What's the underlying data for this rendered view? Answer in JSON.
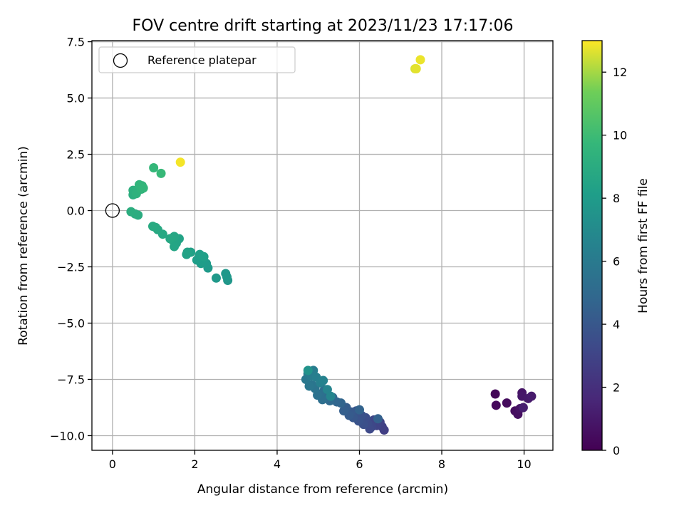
{
  "chart_data": {
    "type": "scatter",
    "title": "FOV centre drift starting at 2023/11/23 17:17:06",
    "xlabel": "Angular distance from reference (arcmin)",
    "ylabel": "Rotation from reference (arcmin)",
    "xlim": [
      -0.5,
      10.7
    ],
    "ylim": [
      -10.65,
      7.55
    ],
    "xticks": [
      0,
      2,
      4,
      6,
      8,
      10
    ],
    "xtick_labels": [
      "0",
      "2",
      "4",
      "6",
      "8",
      "10"
    ],
    "yticks": [
      7.5,
      5.0,
      2.5,
      0.0,
      -2.5,
      -5.0,
      -7.5,
      -10.0
    ],
    "ytick_labels": [
      "7.5",
      "5.0",
      "2.5",
      "0.0",
      "−2.5",
      "−5.0",
      "−7.5",
      "−10.0"
    ],
    "grid": true,
    "colormap": "viridis",
    "colorbar": {
      "label": "Hours from first FF file",
      "range": [
        0,
        13
      ],
      "ticks": [
        0,
        2,
        4,
        6,
        8,
        10,
        12
      ],
      "tick_labels": [
        "0",
        "2",
        "4",
        "6",
        "8",
        "10",
        "12"
      ]
    },
    "legend": {
      "position": "upper-left",
      "entries": [
        {
          "label": "Reference platepar",
          "marker": "hollow-circle"
        }
      ]
    },
    "reference_point": {
      "x": 0,
      "y": 0
    },
    "points": [
      {
        "x": 9.3,
        "y": -8.15,
        "c": 0.2
      },
      {
        "x": 9.32,
        "y": -8.65,
        "c": 0.3
      },
      {
        "x": 9.58,
        "y": -8.55,
        "c": 0.4
      },
      {
        "x": 9.78,
        "y": -8.9,
        "c": 0.5
      },
      {
        "x": 9.85,
        "y": -9.05,
        "c": 0.6
      },
      {
        "x": 9.9,
        "y": -8.8,
        "c": 0.7
      },
      {
        "x": 9.95,
        "y": -8.1,
        "c": 0.8
      },
      {
        "x": 9.95,
        "y": -8.25,
        "c": 0.9
      },
      {
        "x": 10.1,
        "y": -8.35,
        "c": 1.0
      },
      {
        "x": 10.18,
        "y": -8.25,
        "c": 1.1
      },
      {
        "x": 9.98,
        "y": -8.75,
        "c": 1.2
      },
      {
        "x": 6.6,
        "y": -9.75,
        "c": 2.7
      },
      {
        "x": 6.55,
        "y": -9.6,
        "c": 2.8
      },
      {
        "x": 6.5,
        "y": -9.4,
        "c": 2.9
      },
      {
        "x": 6.42,
        "y": -9.55,
        "c": 3.0
      },
      {
        "x": 6.35,
        "y": -9.3,
        "c": 3.1
      },
      {
        "x": 6.3,
        "y": -9.6,
        "c": 3.2
      },
      {
        "x": 6.25,
        "y": -9.7,
        "c": 3.3
      },
      {
        "x": 6.2,
        "y": -9.45,
        "c": 3.4
      },
      {
        "x": 6.15,
        "y": -9.2,
        "c": 3.5
      },
      {
        "x": 6.1,
        "y": -9.5,
        "c": 3.6
      },
      {
        "x": 6.05,
        "y": -9.1,
        "c": 3.7
      },
      {
        "x": 5.98,
        "y": -9.35,
        "c": 3.8
      },
      {
        "x": 5.92,
        "y": -8.9,
        "c": 3.9
      },
      {
        "x": 5.85,
        "y": -9.2,
        "c": 4.0
      },
      {
        "x": 5.8,
        "y": -8.95,
        "c": 4.1
      },
      {
        "x": 5.75,
        "y": -9.1,
        "c": 4.2
      },
      {
        "x": 5.68,
        "y": -8.75,
        "c": 4.3
      },
      {
        "x": 5.62,
        "y": -8.9,
        "c": 4.4
      },
      {
        "x": 6.45,
        "y": -9.25,
        "c": 4.5
      },
      {
        "x": 6.0,
        "y": -8.85,
        "c": 4.6
      },
      {
        "x": 5.55,
        "y": -8.55,
        "c": 4.7
      },
      {
        "x": 5.45,
        "y": -8.5,
        "c": 4.8
      },
      {
        "x": 5.35,
        "y": -8.3,
        "c": 4.9
      },
      {
        "x": 5.28,
        "y": -8.45,
        "c": 5.0
      },
      {
        "x": 5.2,
        "y": -8.1,
        "c": 5.1
      },
      {
        "x": 5.15,
        "y": -7.95,
        "c": 5.2
      },
      {
        "x": 5.1,
        "y": -8.4,
        "c": 5.3
      },
      {
        "x": 5.05,
        "y": -8.15,
        "c": 5.4
      },
      {
        "x": 4.98,
        "y": -8.2,
        "c": 5.5
      },
      {
        "x": 4.92,
        "y": -7.9,
        "c": 5.6
      },
      {
        "x": 4.85,
        "y": -7.75,
        "c": 5.7
      },
      {
        "x": 4.78,
        "y": -7.8,
        "c": 5.8
      },
      {
        "x": 4.7,
        "y": -7.5,
        "c": 5.9
      },
      {
        "x": 4.75,
        "y": -7.25,
        "c": 6.0
      },
      {
        "x": 4.82,
        "y": -7.35,
        "c": 6.1
      },
      {
        "x": 4.88,
        "y": -7.1,
        "c": 6.2
      },
      {
        "x": 4.95,
        "y": -7.4,
        "c": 6.3
      },
      {
        "x": 5.05,
        "y": -7.65,
        "c": 6.4
      },
      {
        "x": 5.12,
        "y": -7.55,
        "c": 6.5
      },
      {
        "x": 5.22,
        "y": -7.95,
        "c": 6.6
      },
      {
        "x": 5.3,
        "y": -8.25,
        "c": 6.7
      },
      {
        "x": 4.75,
        "y": -7.1,
        "c": 7.5
      },
      {
        "x": 2.8,
        "y": -3.1,
        "c": 7.7
      },
      {
        "x": 2.78,
        "y": -2.95,
        "c": 7.75
      },
      {
        "x": 2.75,
        "y": -2.8,
        "c": 7.8
      },
      {
        "x": 2.52,
        "y": -3.0,
        "c": 7.85
      },
      {
        "x": 2.32,
        "y": -2.55,
        "c": 7.9
      },
      {
        "x": 2.28,
        "y": -2.35,
        "c": 7.95
      },
      {
        "x": 2.2,
        "y": -2.2,
        "c": 8.0
      },
      {
        "x": 2.15,
        "y": -2.35,
        "c": 8.05
      },
      {
        "x": 2.1,
        "y": -2.1,
        "c": 8.1
      },
      {
        "x": 2.05,
        "y": -2.2,
        "c": 8.15
      },
      {
        "x": 2.12,
        "y": -1.95,
        "c": 8.2
      },
      {
        "x": 2.22,
        "y": -2.05,
        "c": 8.25
      },
      {
        "x": 1.9,
        "y": -1.85,
        "c": 8.3
      },
      {
        "x": 1.8,
        "y": -1.95,
        "c": 8.35
      },
      {
        "x": 1.82,
        "y": -1.85,
        "c": 8.4
      },
      {
        "x": 1.62,
        "y": -1.25,
        "c": 8.45
      },
      {
        "x": 1.55,
        "y": -1.45,
        "c": 8.5
      },
      {
        "x": 1.5,
        "y": -1.6,
        "c": 8.55
      },
      {
        "x": 1.45,
        "y": -1.3,
        "c": 8.6
      },
      {
        "x": 1.5,
        "y": -1.15,
        "c": 8.65
      },
      {
        "x": 1.4,
        "y": -1.25,
        "c": 8.7
      },
      {
        "x": 1.22,
        "y": -1.05,
        "c": 8.75
      },
      {
        "x": 1.1,
        "y": -0.85,
        "c": 8.8
      },
      {
        "x": 1.05,
        "y": -0.75,
        "c": 8.85
      },
      {
        "x": 0.98,
        "y": -0.7,
        "c": 8.9
      },
      {
        "x": 0.62,
        "y": -0.2,
        "c": 9.0
      },
      {
        "x": 0.55,
        "y": -0.15,
        "c": 9.05
      },
      {
        "x": 0.45,
        "y": -0.05,
        "c": 9.1
      },
      {
        "x": 0.5,
        "y": 0.7,
        "c": 9.15
      },
      {
        "x": 0.55,
        "y": 0.8,
        "c": 9.2
      },
      {
        "x": 0.5,
        "y": 0.9,
        "c": 9.25
      },
      {
        "x": 0.62,
        "y": 0.95,
        "c": 9.3
      },
      {
        "x": 0.58,
        "y": 0.75,
        "c": 9.35
      },
      {
        "x": 0.68,
        "y": 1.05,
        "c": 9.4
      },
      {
        "x": 0.72,
        "y": 1.1,
        "c": 9.45
      },
      {
        "x": 0.7,
        "y": 0.95,
        "c": 9.5
      },
      {
        "x": 0.65,
        "y": 1.15,
        "c": 9.55
      },
      {
        "x": 0.75,
        "y": 1.0,
        "c": 9.6
      },
      {
        "x": 1.0,
        "y": 1.9,
        "c": 9.7
      },
      {
        "x": 1.18,
        "y": 1.65,
        "c": 9.8
      },
      {
        "x": 7.35,
        "y": 6.3,
        "c": 12.6
      },
      {
        "x": 7.38,
        "y": 6.3,
        "c": 12.7
      },
      {
        "x": 7.48,
        "y": 6.7,
        "c": 12.8
      },
      {
        "x": 1.65,
        "y": 2.15,
        "c": 12.9
      }
    ]
  }
}
